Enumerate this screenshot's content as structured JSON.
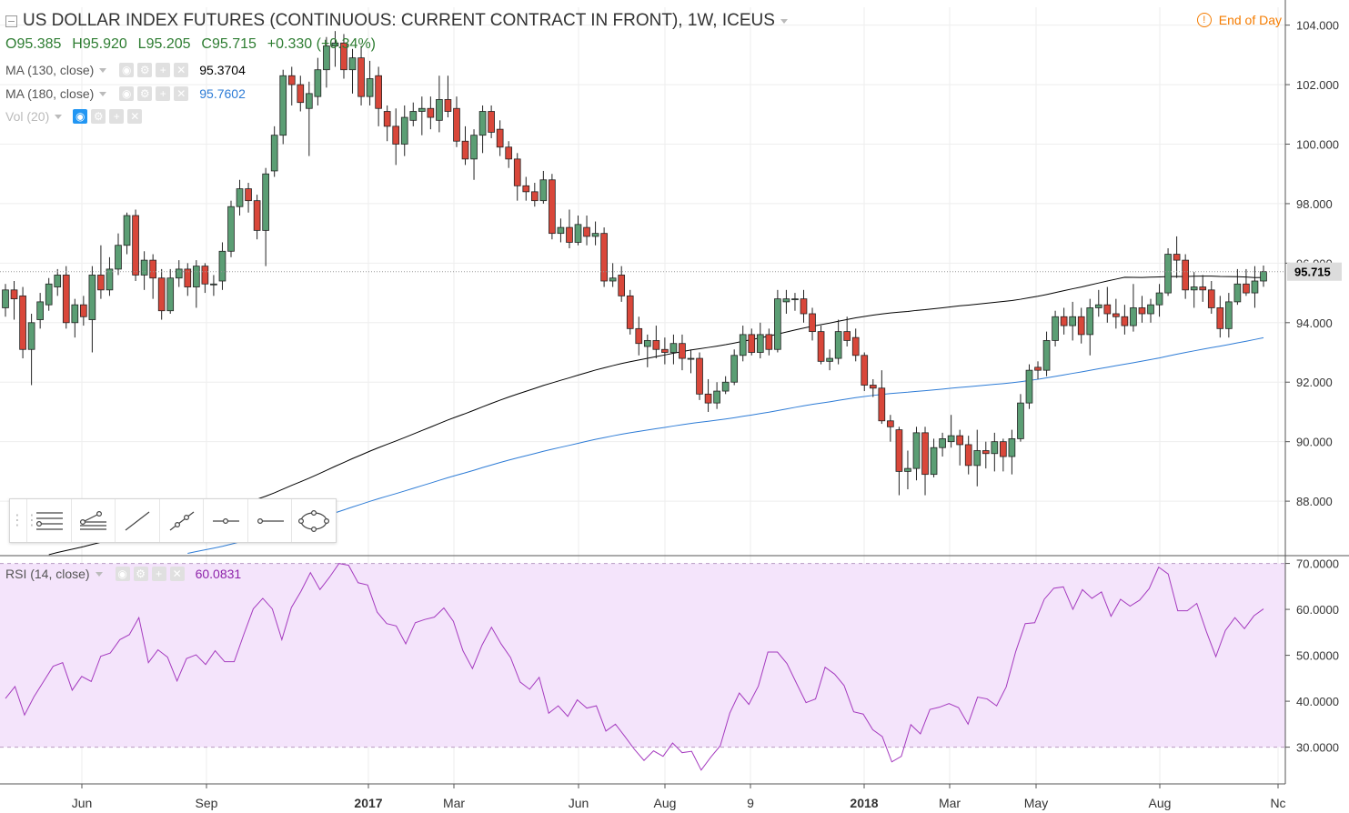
{
  "header": {
    "title": "US DOLLAR INDEX FUTURES (CONTINUOUS: CURRENT CONTRACT IN FRONT), 1W, ICEUS",
    "ohlc": {
      "open": "O95.385",
      "high": "H95.920",
      "low": "L95.205",
      "close": "C95.715",
      "change": "+0.330 (+0.34%)"
    },
    "end_of_day": "End of Day",
    "indicators": [
      {
        "label": "MA (130, close)",
        "value": "95.3704",
        "color": "#000000"
      },
      {
        "label": "MA (180, close)",
        "value": "95.7602",
        "color": "#2e7cd6"
      },
      {
        "label": "Vol (20)",
        "value": "",
        "color": "#bbbbbb"
      }
    ],
    "rsi": {
      "label": "RSI (14, close)",
      "value": "60.0831",
      "color": "#8e24aa"
    }
  },
  "colors": {
    "up": "#5b9e74",
    "down": "#d9473a",
    "grid": "#eeeeee",
    "rsi_fill": "#f4e4fb",
    "ma130": "#000000",
    "ma180": "#2e7cd6",
    "rsi_line": "#a53bbf"
  },
  "chart_data": [
    {
      "type": "candlestick",
      "title": "US DOLLAR INDEX FUTURES (CONTINUOUS: CURRENT CONTRACT IN FRONT), 1W, ICEUS",
      "ylim": [
        86.2,
        104.6
      ],
      "y_ticks": [
        "88.000",
        "90.000",
        "92.000",
        "94.000",
        "96.000",
        "98.000",
        "100.000",
        "102.000",
        "104.000"
      ],
      "last_price": "95.715",
      "x_ticks": [
        "Jun",
        "Sep",
        "2017",
        "Mar",
        "Jun",
        "Aug",
        "9",
        "2018",
        "Mar",
        "May",
        "Aug",
        "Nc"
      ],
      "candles": [
        [
          94.5,
          95.1,
          95.3,
          94.2
        ],
        [
          95.1,
          94.8,
          95.4,
          94.1
        ],
        [
          94.9,
          93.1,
          95.2,
          92.8
        ],
        [
          93.1,
          94.0,
          94.3,
          91.9
        ],
        [
          94.1,
          94.7,
          95.0,
          93.8
        ],
        [
          94.6,
          95.3,
          95.5,
          94.4
        ],
        [
          95.2,
          95.6,
          95.8,
          94.9
        ],
        [
          95.6,
          94.0,
          95.9,
          93.8
        ],
        [
          94.0,
          94.6,
          94.8,
          93.5
        ],
        [
          94.6,
          94.2,
          94.9,
          93.9
        ],
        [
          94.1,
          95.6,
          95.9,
          93.0
        ],
        [
          95.6,
          95.1,
          96.6,
          94.8
        ],
        [
          95.1,
          95.8,
          96.2,
          94.9
        ],
        [
          95.8,
          96.6,
          97.0,
          95.6
        ],
        [
          96.6,
          97.6,
          97.7,
          96.3
        ],
        [
          97.6,
          95.6,
          97.8,
          95.4
        ],
        [
          95.6,
          96.1,
          96.4,
          95.1
        ],
        [
          96.1,
          95.5,
          96.3,
          94.8
        ],
        [
          95.5,
          94.4,
          95.8,
          94.1
        ],
        [
          94.4,
          95.5,
          95.8,
          94.3
        ],
        [
          95.5,
          95.8,
          96.1,
          95.2
        ],
        [
          95.8,
          95.2,
          96.0,
          94.9
        ],
        [
          95.2,
          95.9,
          96.1,
          94.5
        ],
        [
          95.9,
          95.3,
          96.0,
          95.0
        ],
        [
          95.3,
          95.3,
          95.6,
          94.9
        ],
        [
          95.4,
          96.4,
          96.7,
          95.1
        ],
        [
          96.4,
          97.9,
          98.1,
          96.2
        ],
        [
          97.9,
          98.5,
          98.8,
          97.6
        ],
        [
          98.5,
          98.1,
          98.7,
          97.7
        ],
        [
          98.1,
          97.1,
          98.3,
          96.8
        ],
        [
          97.1,
          99.0,
          99.2,
          95.9
        ],
        [
          99.1,
          100.3,
          100.6,
          98.9
        ],
        [
          100.3,
          102.3,
          102.5,
          100.0
        ],
        [
          102.3,
          102.0,
          102.6,
          101.3
        ],
        [
          102.0,
          101.4,
          102.3,
          101.1
        ],
        [
          101.2,
          101.7,
          102.1,
          99.6
        ],
        [
          101.6,
          102.5,
          102.9,
          101.3
        ],
        [
          102.5,
          103.3,
          103.6,
          101.9
        ],
        [
          103.3,
          103.4,
          103.8,
          102.6
        ],
        [
          103.4,
          102.5,
          103.7,
          102.2
        ],
        [
          102.5,
          102.9,
          103.2,
          101.7
        ],
        [
          102.9,
          101.6,
          103.3,
          101.3
        ],
        [
          101.6,
          102.2,
          102.8,
          101.3
        ],
        [
          102.3,
          101.2,
          102.6,
          100.6
        ],
        [
          101.1,
          100.6,
          101.3,
          100.1
        ],
        [
          100.6,
          100.0,
          101.2,
          99.3
        ],
        [
          100.0,
          100.9,
          101.3,
          99.6
        ],
        [
          100.8,
          101.1,
          101.4,
          100.6
        ],
        [
          101.1,
          101.2,
          101.6,
          100.3
        ],
        [
          101.2,
          100.9,
          101.6,
          100.5
        ],
        [
          100.8,
          101.5,
          102.3,
          100.4
        ],
        [
          101.5,
          101.1,
          102.3,
          100.9
        ],
        [
          101.2,
          100.1,
          101.6,
          99.9
        ],
        [
          100.1,
          99.5,
          100.6,
          99.3
        ],
        [
          99.5,
          100.3,
          100.5,
          98.8
        ],
        [
          100.3,
          101.1,
          101.3,
          99.7
        ],
        [
          101.1,
          100.4,
          101.3,
          100.2
        ],
        [
          100.5,
          99.9,
          100.8,
          99.6
        ],
        [
          99.9,
          99.5,
          100.1,
          99.2
        ],
        [
          99.5,
          98.6,
          99.7,
          98.1
        ],
        [
          98.6,
          98.4,
          98.9,
          98.1
        ],
        [
          98.4,
          98.1,
          98.7,
          97.9
        ],
        [
          98.1,
          98.8,
          99.1,
          98.0
        ],
        [
          98.8,
          97.0,
          99.0,
          96.8
        ],
        [
          97.0,
          97.2,
          97.5,
          96.7
        ],
        [
          97.2,
          96.7,
          97.8,
          96.5
        ],
        [
          96.7,
          97.3,
          97.6,
          96.6
        ],
        [
          97.2,
          96.9,
          97.6,
          96.6
        ],
        [
          96.9,
          97.0,
          97.4,
          96.6
        ],
        [
          97.0,
          95.4,
          97.2,
          95.2
        ],
        [
          95.4,
          95.5,
          96.0,
          95.2
        ],
        [
          95.6,
          94.9,
          95.9,
          94.7
        ],
        [
          94.9,
          93.8,
          95.1,
          93.6
        ],
        [
          93.8,
          93.3,
          94.2,
          92.9
        ],
        [
          93.2,
          93.4,
          93.6,
          92.5
        ],
        [
          93.4,
          93.1,
          93.9,
          92.8
        ],
        [
          93.1,
          93.0,
          93.5,
          92.6
        ],
        [
          93.0,
          93.3,
          93.6,
          92.6
        ],
        [
          93.3,
          92.8,
          93.6,
          92.4
        ],
        [
          92.8,
          92.8,
          93.1,
          92.3
        ],
        [
          92.8,
          91.6,
          93.0,
          91.4
        ],
        [
          91.6,
          91.3,
          92.1,
          91.0
        ],
        [
          91.3,
          91.7,
          92.0,
          91.1
        ],
        [
          91.7,
          92.0,
          92.2,
          91.6
        ],
        [
          92.0,
          92.9,
          93.1,
          91.9
        ],
        [
          92.9,
          93.6,
          93.9,
          92.7
        ],
        [
          93.6,
          93.0,
          93.8,
          92.9
        ],
        [
          93.0,
          93.6,
          94.0,
          92.8
        ],
        [
          93.6,
          93.1,
          93.8,
          92.9
        ],
        [
          93.1,
          94.8,
          95.1,
          93.0
        ],
        [
          94.7,
          94.8,
          95.1,
          94.3
        ],
        [
          94.8,
          94.8,
          95.0,
          94.4
        ],
        [
          94.8,
          94.3,
          95.1,
          94.0
        ],
        [
          94.3,
          93.7,
          94.5,
          93.4
        ],
        [
          93.7,
          92.7,
          93.9,
          92.6
        ],
        [
          92.7,
          92.8,
          93.1,
          92.4
        ],
        [
          92.8,
          93.7,
          94.1,
          92.6
        ],
        [
          93.7,
          93.4,
          94.2,
          93.2
        ],
        [
          93.5,
          92.9,
          93.8,
          92.7
        ],
        [
          92.9,
          91.9,
          93.0,
          91.7
        ],
        [
          91.9,
          91.8,
          92.1,
          91.5
        ],
        [
          91.8,
          90.7,
          92.4,
          90.6
        ],
        [
          90.7,
          90.5,
          90.9,
          90.0
        ],
        [
          90.4,
          89.0,
          90.5,
          88.2
        ],
        [
          89.0,
          89.1,
          89.7,
          88.4
        ],
        [
          89.1,
          90.3,
          90.5,
          88.7
        ],
        [
          90.3,
          88.9,
          90.5,
          88.2
        ],
        [
          88.9,
          89.8,
          90.1,
          88.8
        ],
        [
          89.8,
          90.1,
          90.3,
          89.5
        ],
        [
          90.0,
          90.2,
          90.9,
          89.8
        ],
        [
          90.2,
          89.9,
          90.4,
          89.2
        ],
        [
          89.9,
          89.2,
          90.2,
          88.9
        ],
        [
          89.2,
          89.7,
          90.4,
          88.5
        ],
        [
          89.7,
          89.6,
          90.0,
          89.1
        ],
        [
          89.6,
          90.0,
          90.3,
          89.0
        ],
        [
          90.0,
          89.5,
          90.1,
          89.0
        ],
        [
          89.5,
          90.1,
          90.4,
          88.9
        ],
        [
          90.1,
          91.3,
          91.6,
          90.0
        ],
        [
          91.3,
          92.4,
          92.6,
          91.1
        ],
        [
          92.5,
          92.4,
          92.7,
          92.1
        ],
        [
          92.4,
          93.4,
          93.7,
          92.2
        ],
        [
          93.4,
          94.2,
          94.4,
          93.2
        ],
        [
          94.2,
          93.9,
          94.5,
          93.6
        ],
        [
          93.9,
          94.2,
          94.7,
          93.4
        ],
        [
          94.2,
          93.6,
          94.5,
          93.3
        ],
        [
          93.6,
          94.5,
          94.8,
          92.9
        ],
        [
          94.5,
          94.6,
          95.1,
          94.2
        ],
        [
          94.6,
          94.3,
          95.2,
          94.0
        ],
        [
          94.3,
          94.2,
          94.8,
          93.8
        ],
        [
          94.2,
          93.9,
          94.6,
          93.6
        ],
        [
          93.9,
          94.5,
          95.3,
          93.7
        ],
        [
          94.5,
          94.3,
          94.9,
          94.0
        ],
        [
          94.3,
          94.6,
          94.8,
          94.0
        ],
        [
          94.6,
          95.0,
          95.3,
          94.2
        ],
        [
          95.0,
          96.3,
          96.5,
          94.9
        ],
        [
          96.3,
          96.1,
          96.9,
          95.5
        ],
        [
          96.1,
          95.1,
          96.3,
          94.8
        ],
        [
          95.1,
          95.2,
          95.7,
          94.5
        ],
        [
          95.2,
          95.1,
          95.6,
          94.7
        ],
        [
          95.1,
          94.5,
          95.4,
          94.3
        ],
        [
          94.5,
          93.8,
          94.9,
          93.5
        ],
        [
          93.8,
          94.7,
          95.0,
          93.5
        ],
        [
          94.7,
          95.3,
          95.8,
          94.6
        ],
        [
          95.3,
          95.0,
          95.8,
          94.9
        ],
        [
          95.0,
          95.4,
          95.9,
          94.5
        ],
        [
          95.4,
          95.715,
          95.92,
          95.205
        ]
      ]
    },
    {
      "type": "line",
      "title": "RSI (14, close)",
      "ylim": [
        22,
        71.5
      ],
      "y_ticks": [
        "30.0000",
        "40.0000",
        "50.0000",
        "60.0000",
        "70.0000"
      ],
      "bands": [
        30,
        70
      ],
      "values": [
        40.6,
        43.2,
        37.0,
        41.0,
        44.3,
        47.6,
        48.4,
        42.4,
        45.4,
        44.3,
        49.8,
        50.5,
        53.4,
        54.5,
        58.2,
        48.4,
        51.2,
        49.6,
        44.4,
        49.3,
        50.1,
        48.0,
        51.0,
        48.6,
        48.6,
        54.5,
        60.1,
        62.4,
        60.1,
        53.4,
        60.4,
        63.9,
        68.0,
        64.3,
        67.0,
        70.0,
        69.6,
        65.8,
        65.3,
        59.4,
        56.9,
        56.4,
        52.5,
        57.1,
        57.8,
        58.3,
        60.3,
        57.4,
        51.0,
        47.1,
        52.2,
        56.1,
        52.5,
        49.5,
        44.2,
        42.6,
        45.2,
        37.4,
        39.0,
        36.7,
        40.3,
        38.5,
        39.0,
        33.5,
        35.0,
        32.3,
        29.5,
        27.1,
        29.2,
        28.0,
        30.9,
        28.8,
        29.1,
        25.0,
        27.8,
        30.3,
        37.4,
        41.8,
        39.3,
        43.3,
        50.7,
        50.7,
        48.2,
        43.9,
        39.7,
        40.5,
        47.4,
        45.9,
        43.4,
        37.7,
        37.2,
        33.8,
        32.3,
        26.8,
        28.0,
        34.9,
        32.9,
        38.2,
        38.7,
        39.5,
        38.6,
        35.0,
        40.9,
        40.5,
        39.0,
        43.1,
        50.8,
        56.9,
        57.1,
        62.2,
        64.6,
        64.9,
        60.0,
        64.3,
        62.4,
        63.8,
        58.5,
        62.2,
        60.7,
        62.0,
        64.5,
        69.2,
        67.7,
        59.7,
        59.7,
        61.3,
        55.2,
        49.7,
        55.4,
        58.2,
        55.8,
        58.6,
        60.1
      ]
    }
  ]
}
